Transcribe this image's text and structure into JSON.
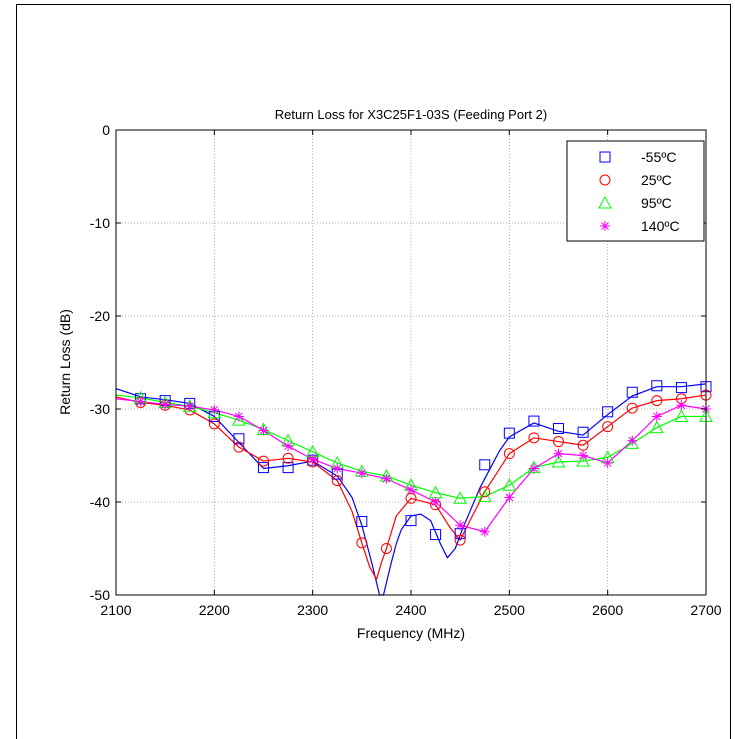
{
  "chart_data": {
    "type": "line",
    "title": "Return Loss for X3C25F1-03S (Feeding Port 2)",
    "xlabel": "Frequency (MHz)",
    "ylabel": "Return Loss (dB)",
    "xlim": [
      2100,
      2700
    ],
    "ylim": [
      -50,
      0
    ],
    "xticks": [
      2100,
      2200,
      2300,
      2400,
      2500,
      2600,
      2700
    ],
    "yticks": [
      0,
      -10,
      -20,
      -30,
      -40,
      -50
    ],
    "grid": true,
    "legend_position": "top-right",
    "series": [
      {
        "name": "-55ºC",
        "color": "#0000ff",
        "marker": "square",
        "markers_x": [
          2125,
          2150,
          2175,
          2200,
          2225,
          2250,
          2275,
          2300,
          2325,
          2350,
          2400,
          2425,
          2450,
          2475,
          2500,
          2525,
          2550,
          2575,
          2600,
          2625,
          2650,
          2675,
          2700
        ],
        "markers_y": [
          -28.9,
          -29.1,
          -29.4,
          -30.8,
          -33.2,
          -36.3,
          -36.3,
          -35.5,
          -37.0,
          -42.1,
          -42.0,
          -43.5,
          -43.4,
          -36.0,
          -32.6,
          -31.3,
          -32.1,
          -32.5,
          -30.3,
          -28.2,
          -27.5,
          -27.7,
          -27.6
        ],
        "curve_x": [
          2100,
          2125,
          2150,
          2175,
          2200,
          2225,
          2250,
          2275,
          2300,
          2325,
          2340,
          2350,
          2360,
          2368,
          2372,
          2380,
          2385,
          2390,
          2400,
          2410,
          2420,
          2430,
          2437,
          2445,
          2452,
          2460,
          2470,
          2480,
          2490,
          2500,
          2525,
          2550,
          2575,
          2600,
          2625,
          2650,
          2675,
          2700
        ],
        "curve_y": [
          -27.8,
          -28.7,
          -29.0,
          -29.4,
          -30.8,
          -33.6,
          -36.4,
          -36.1,
          -35.6,
          -37.2,
          -39.5,
          -42.5,
          -46.5,
          -50,
          -50,
          -46.5,
          -44.5,
          -43.0,
          -41.5,
          -41.3,
          -42.0,
          -44.5,
          -46.0,
          -45.0,
          -43.0,
          -41.0,
          -38.5,
          -36.5,
          -34.5,
          -33.0,
          -31.5,
          -32.4,
          -32.8,
          -30.6,
          -28.6,
          -27.6,
          -27.6,
          -27.3
        ]
      },
      {
        "name": "25ºC",
        "color": "#ff0000",
        "marker": "circle",
        "markers_x": [
          2125,
          2150,
          2175,
          2200,
          2225,
          2250,
          2275,
          2300,
          2325,
          2350,
          2375,
          2400,
          2425,
          2450,
          2475,
          2500,
          2525,
          2550,
          2575,
          2600,
          2625,
          2650,
          2675,
          2700
        ],
        "markers_y": [
          -29.3,
          -29.6,
          -30.1,
          -31.6,
          -34.1,
          -35.6,
          -35.3,
          -35.7,
          -37.7,
          -44.4,
          -45.0,
          -39.6,
          -40.3,
          -44.1,
          -38.9,
          -34.8,
          -33.1,
          -33.5,
          -33.9,
          -31.9,
          -29.9,
          -29.1,
          -28.9,
          -28.5
        ],
        "curve_x": [
          2100,
          2125,
          2150,
          2175,
          2200,
          2225,
          2250,
          2275,
          2300,
          2325,
          2340,
          2350,
          2358,
          2365,
          2370,
          2375,
          2385,
          2400,
          2425,
          2440,
          2450,
          2460,
          2475,
          2500,
          2525,
          2550,
          2575,
          2600,
          2625,
          2650,
          2675,
          2700
        ],
        "curve_y": [
          -28.7,
          -29.3,
          -29.6,
          -30.1,
          -31.6,
          -34.1,
          -35.6,
          -35.3,
          -35.7,
          -37.7,
          -41.0,
          -44.4,
          -47.0,
          -48.3,
          -46.5,
          -45.0,
          -41.5,
          -39.6,
          -40.3,
          -42.8,
          -44.1,
          -42.0,
          -38.9,
          -34.8,
          -33.1,
          -33.5,
          -33.9,
          -31.9,
          -29.9,
          -29.1,
          -28.9,
          -28.5
        ]
      },
      {
        "name": "95ºC",
        "color": "#00ff00",
        "marker": "triangle",
        "markers_x": [
          2125,
          2150,
          2175,
          2200,
          2225,
          2250,
          2275,
          2300,
          2325,
          2350,
          2375,
          2400,
          2425,
          2450,
          2475,
          2500,
          2525,
          2550,
          2575,
          2600,
          2625,
          2650,
          2675,
          2700
        ],
        "markers_y": [
          -28.8,
          -29.3,
          -29.7,
          -30.4,
          -31.2,
          -32.2,
          -33.4,
          -34.6,
          -35.8,
          -36.7,
          -37.2,
          -38.2,
          -39.0,
          -39.6,
          -39.4,
          -38.2,
          -36.3,
          -35.7,
          -35.6,
          -35.2,
          -33.7,
          -32.0,
          -30.8,
          -30.8
        ],
        "curve_x": [
          2100,
          2125,
          2150,
          2175,
          2200,
          2225,
          2250,
          2275,
          2300,
          2325,
          2350,
          2375,
          2400,
          2425,
          2450,
          2475,
          2500,
          2525,
          2550,
          2575,
          2600,
          2625,
          2650,
          2675,
          2700
        ],
        "curve_y": [
          -28.5,
          -28.8,
          -29.3,
          -29.7,
          -30.4,
          -31.2,
          -32.2,
          -33.4,
          -34.6,
          -35.8,
          -36.7,
          -37.2,
          -38.2,
          -39.0,
          -39.6,
          -39.4,
          -38.2,
          -36.3,
          -35.7,
          -35.6,
          -35.2,
          -33.7,
          -32.0,
          -30.8,
          -30.8
        ]
      },
      {
        "name": "140ºC",
        "color": "#ff00ff",
        "marker": "asterisk",
        "markers_x": [
          2125,
          2150,
          2175,
          2200,
          2225,
          2250,
          2275,
          2300,
          2325,
          2350,
          2375,
          2400,
          2425,
          2450,
          2475,
          2500,
          2525,
          2550,
          2575,
          2600,
          2625,
          2650,
          2675,
          2700
        ],
        "markers_y": [
          -29.2,
          -29.5,
          -29.7,
          -30.1,
          -30.8,
          -32.3,
          -34.0,
          -35.4,
          -36.4,
          -36.9,
          -37.5,
          -38.7,
          -40.0,
          -42.5,
          -43.2,
          -39.5,
          -36.4,
          -34.8,
          -35.0,
          -35.8,
          -33.4,
          -30.8,
          -29.6,
          -30.0
        ],
        "curve_x": [
          2100,
          2125,
          2150,
          2175,
          2200,
          2225,
          2250,
          2275,
          2300,
          2325,
          2350,
          2375,
          2400,
          2425,
          2450,
          2475,
          2500,
          2525,
          2550,
          2575,
          2600,
          2625,
          2650,
          2675,
          2700
        ],
        "curve_y": [
          -28.9,
          -29.2,
          -29.5,
          -29.7,
          -30.1,
          -30.8,
          -32.3,
          -34.0,
          -35.4,
          -36.4,
          -36.9,
          -37.5,
          -38.7,
          -40.0,
          -42.5,
          -43.2,
          -39.5,
          -36.4,
          -34.8,
          -35.0,
          -35.8,
          -33.4,
          -30.8,
          -29.6,
          -30.0
        ]
      }
    ]
  }
}
